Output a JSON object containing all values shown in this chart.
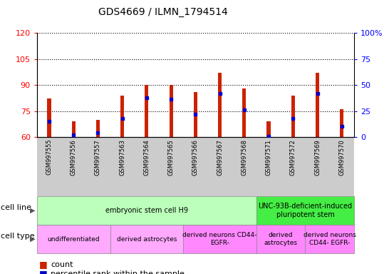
{
  "title": "GDS4669 / ILMN_1794514",
  "samples": [
    "GSM997555",
    "GSM997556",
    "GSM997557",
    "GSM997563",
    "GSM997564",
    "GSM997565",
    "GSM997566",
    "GSM997567",
    "GSM997568",
    "GSM997571",
    "GSM997572",
    "GSM997569",
    "GSM997570"
  ],
  "count_values": [
    82,
    69,
    70,
    84,
    90,
    90,
    86,
    97,
    88,
    69,
    84,
    97,
    76
  ],
  "percentile_values": [
    15,
    2,
    4,
    18,
    38,
    36,
    22,
    42,
    26,
    1,
    18,
    42,
    10
  ],
  "ylim_left": [
    60,
    120
  ],
  "ylim_right": [
    0,
    100
  ],
  "yticks_left": [
    60,
    75,
    90,
    105,
    120
  ],
  "yticks_right": [
    0,
    25,
    50,
    75,
    100
  ],
  "bar_color": "#cc2200",
  "dot_color": "#0000cc",
  "bar_bottom": 60,
  "bar_width": 0.15,
  "cell_line_groups": [
    {
      "label": "embryonic stem cell H9",
      "start": 0,
      "end": 9,
      "color": "#bbffbb"
    },
    {
      "label": "UNC-93B-deficient-induced\npluripotent stem",
      "start": 9,
      "end": 13,
      "color": "#44ee44"
    }
  ],
  "cell_type_groups": [
    {
      "label": "undifferentiated",
      "start": 0,
      "end": 3,
      "color": "#ffaaff"
    },
    {
      "label": "derived astrocytes",
      "start": 3,
      "end": 6,
      "color": "#ffaaff"
    },
    {
      "label": "derived neurons CD44-\nEGFR-",
      "start": 6,
      "end": 9,
      "color": "#ff88ff"
    },
    {
      "label": "derived\nastrocytes",
      "start": 9,
      "end": 11,
      "color": "#ff88ff"
    },
    {
      "label": "derived neurons\nCD44- EGFR-",
      "start": 11,
      "end": 13,
      "color": "#ff88ff"
    }
  ],
  "legend_count_label": "count",
  "legend_pct_label": "percentile rank within the sample",
  "cell_line_label": "cell line",
  "cell_type_label": "cell type",
  "background_color": "#ffffff",
  "tick_area_color": "#cccccc",
  "right_axis_pct_label": "100%"
}
